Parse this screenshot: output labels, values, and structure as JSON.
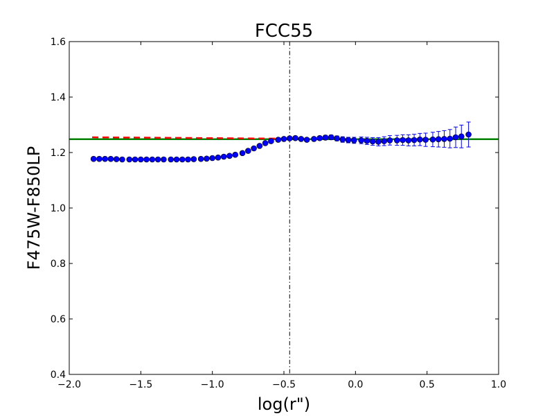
{
  "chart_data": {
    "type": "scatter",
    "title": "FCC55",
    "xlabel": "log(r\")",
    "ylabel": "F475W-F850LP",
    "xlim": [
      -2.0,
      1.0
    ],
    "ylim": [
      0.4,
      1.6
    ],
    "x_ticks": [
      "−2.0",
      "−1.5",
      "−1.0",
      "−0.5",
      "0.0",
      "0.5",
      "1.0"
    ],
    "y_ticks": [
      "0.4",
      "0.6",
      "0.8",
      "1.0",
      "1.2",
      "1.4",
      "1.6"
    ],
    "grid": false,
    "vertical_line": {
      "x": -0.46,
      "style": "dash-dot",
      "color": "#000000"
    },
    "horizontal_line": {
      "y": 1.248,
      "style": "solid",
      "color": "#008000"
    },
    "model_line": {
      "style": "dashed",
      "color": "#ff0000",
      "x": [
        -1.84,
        -0.5
      ],
      "y": [
        1.255,
        1.25
      ]
    },
    "series": [
      {
        "color": "#0000ff",
        "x": [
          -1.83,
          -1.79,
          -1.75,
          -1.71,
          -1.67,
          -1.63,
          -1.58,
          -1.54,
          -1.5,
          -1.46,
          -1.42,
          -1.38,
          -1.34,
          -1.29,
          -1.25,
          -1.21,
          -1.17,
          -1.13,
          -1.08,
          -1.04,
          -1.0,
          -0.96,
          -0.92,
          -0.88,
          -0.84,
          -0.79,
          -0.75,
          -0.71,
          -0.67,
          -0.63,
          -0.59,
          -0.54,
          -0.5,
          -0.46,
          -0.42,
          -0.38,
          -0.34,
          -0.29,
          -0.25,
          -0.21,
          -0.17,
          -0.13,
          -0.09,
          -0.05,
          -0.01,
          0.04,
          0.08,
          0.12,
          0.16,
          0.2,
          0.24,
          0.29,
          0.33,
          0.37,
          0.41,
          0.45,
          0.49,
          0.54,
          0.58,
          0.62,
          0.66,
          0.7,
          0.74,
          0.79
        ],
        "y": [
          1.177,
          1.177,
          1.177,
          1.177,
          1.176,
          1.175,
          1.175,
          1.175,
          1.175,
          1.175,
          1.175,
          1.175,
          1.175,
          1.175,
          1.175,
          1.175,
          1.175,
          1.176,
          1.177,
          1.178,
          1.18,
          1.182,
          1.185,
          1.188,
          1.192,
          1.198,
          1.206,
          1.215,
          1.224,
          1.234,
          1.241,
          1.246,
          1.249,
          1.251,
          1.252,
          1.249,
          1.246,
          1.249,
          1.252,
          1.254,
          1.255,
          1.251,
          1.247,
          1.245,
          1.244,
          1.244,
          1.242,
          1.24,
          1.239,
          1.241,
          1.244,
          1.244,
          1.245,
          1.244,
          1.245,
          1.247,
          1.246,
          1.247,
          1.248,
          1.249,
          1.25,
          1.255,
          1.258,
          1.265
        ],
        "err": [
          0.002,
          0.002,
          0.002,
          0.002,
          0.002,
          0.002,
          0.002,
          0.002,
          0.002,
          0.002,
          0.002,
          0.002,
          0.002,
          0.002,
          0.002,
          0.002,
          0.002,
          0.002,
          0.002,
          0.002,
          0.002,
          0.002,
          0.002,
          0.002,
          0.002,
          0.002,
          0.003,
          0.003,
          0.003,
          0.003,
          0.004,
          0.004,
          0.004,
          0.005,
          0.005,
          0.006,
          0.006,
          0.007,
          0.007,
          0.008,
          0.008,
          0.009,
          0.01,
          0.01,
          0.011,
          0.012,
          0.013,
          0.014,
          0.015,
          0.016,
          0.017,
          0.018,
          0.019,
          0.02,
          0.021,
          0.022,
          0.024,
          0.026,
          0.028,
          0.03,
          0.033,
          0.037,
          0.041,
          0.045
        ]
      }
    ]
  }
}
